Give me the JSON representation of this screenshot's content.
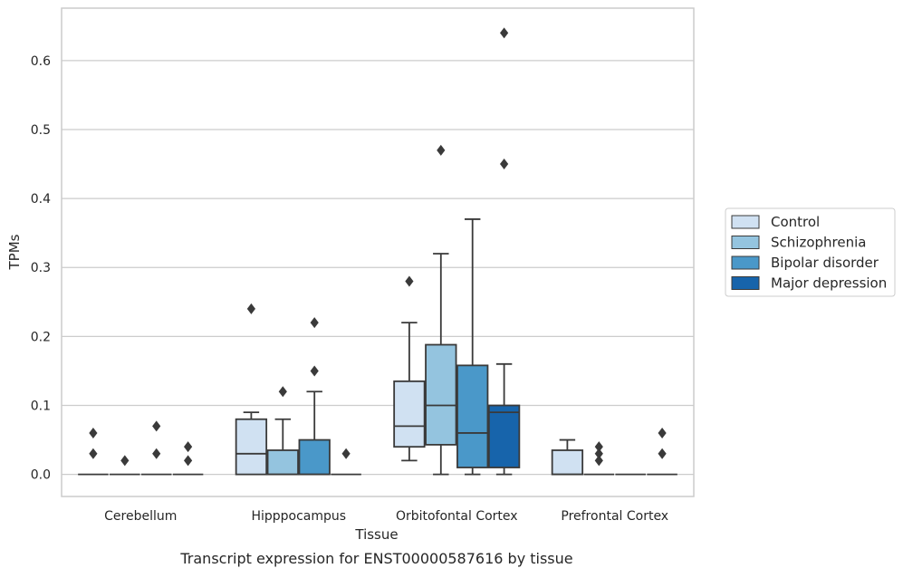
{
  "caption": "Transcript expression for ENST00000587616 by tissue",
  "colors": {
    "Control": "#d0e1f2",
    "Schizophrenia": "#94c4df",
    "Bipolar disorder": "#4a98c9",
    "Major depression": "#1764ab",
    "grid": "#cccccc",
    "frame": "#cccccc",
    "line": "#3a3a3a"
  },
  "chart_data": {
    "type": "box",
    "xlabel": "Tissue",
    "ylabel": "TPMs",
    "ylim": [
      -0.032,
      0.676
    ],
    "yticks": [
      "0.0",
      "0.1",
      "0.2",
      "0.3",
      "0.4",
      "0.5",
      "0.6"
    ],
    "grid": true,
    "legend": {
      "position": "right",
      "entries": [
        "Control",
        "Schizophrenia",
        "Bipolar disorder",
        "Major depression"
      ]
    },
    "categories": [
      "Cerebellum",
      "Hipppocampus",
      "Orbitofontal Cortex",
      "Prefrontal Cortex"
    ],
    "series": [
      {
        "name": "Control",
        "boxes": [
          {
            "q1": 0,
            "median": 0,
            "q3": 0,
            "whisker_low": 0,
            "whisker_high": 0,
            "outliers": [
              0.03,
              0.06
            ]
          },
          {
            "q1": 0,
            "median": 0.03,
            "q3": 0.08,
            "whisker_low": 0,
            "whisker_high": 0.09,
            "outliers": [
              0.24
            ]
          },
          {
            "q1": 0.04,
            "median": 0.07,
            "q3": 0.135,
            "whisker_low": 0.02,
            "whisker_high": 0.22,
            "outliers": [
              0.28
            ]
          },
          {
            "q1": 0,
            "median": 0,
            "q3": 0.035,
            "whisker_low": 0,
            "whisker_high": 0.05,
            "outliers": []
          }
        ]
      },
      {
        "name": "Schizophrenia",
        "boxes": [
          {
            "q1": 0,
            "median": 0,
            "q3": 0,
            "whisker_low": 0,
            "whisker_high": 0,
            "outliers": [
              0.02
            ]
          },
          {
            "q1": 0,
            "median": 0,
            "q3": 0.035,
            "whisker_low": 0,
            "whisker_high": 0.08,
            "outliers": [
              0.12
            ]
          },
          {
            "q1": 0.043,
            "median": 0.1,
            "q3": 0.188,
            "whisker_low": 0,
            "whisker_high": 0.32,
            "outliers": [
              0.47
            ]
          },
          {
            "q1": 0,
            "median": 0,
            "q3": 0,
            "whisker_low": 0,
            "whisker_high": 0,
            "outliers": [
              0.02,
              0.03,
              0.04
            ]
          }
        ]
      },
      {
        "name": "Bipolar disorder",
        "boxes": [
          {
            "q1": 0,
            "median": 0,
            "q3": 0,
            "whisker_low": 0,
            "whisker_high": 0,
            "outliers": [
              0.03,
              0.07
            ]
          },
          {
            "q1": 0,
            "median": 0,
            "q3": 0.05,
            "whisker_low": 0,
            "whisker_high": 0.12,
            "outliers": [
              0.15,
              0.22
            ]
          },
          {
            "q1": 0.01,
            "median": 0.06,
            "q3": 0.158,
            "whisker_low": 0,
            "whisker_high": 0.37,
            "outliers": []
          },
          {
            "q1": 0,
            "median": 0,
            "q3": 0,
            "whisker_low": 0,
            "whisker_high": 0,
            "outliers": []
          }
        ]
      },
      {
        "name": "Major depression",
        "boxes": [
          {
            "q1": 0,
            "median": 0,
            "q3": 0,
            "whisker_low": 0,
            "whisker_high": 0,
            "outliers": [
              0.02,
              0.04
            ]
          },
          {
            "q1": 0,
            "median": 0,
            "q3": 0,
            "whisker_low": 0,
            "whisker_high": 0,
            "outliers": [
              0.03
            ]
          },
          {
            "q1": 0.01,
            "median": 0.09,
            "q3": 0.1,
            "whisker_low": 0,
            "whisker_high": 0.16,
            "outliers": [
              0.45,
              0.64
            ]
          },
          {
            "q1": 0,
            "median": 0,
            "q3": 0,
            "whisker_low": 0,
            "whisker_high": 0,
            "outliers": [
              0.03,
              0.06
            ]
          }
        ]
      }
    ]
  }
}
